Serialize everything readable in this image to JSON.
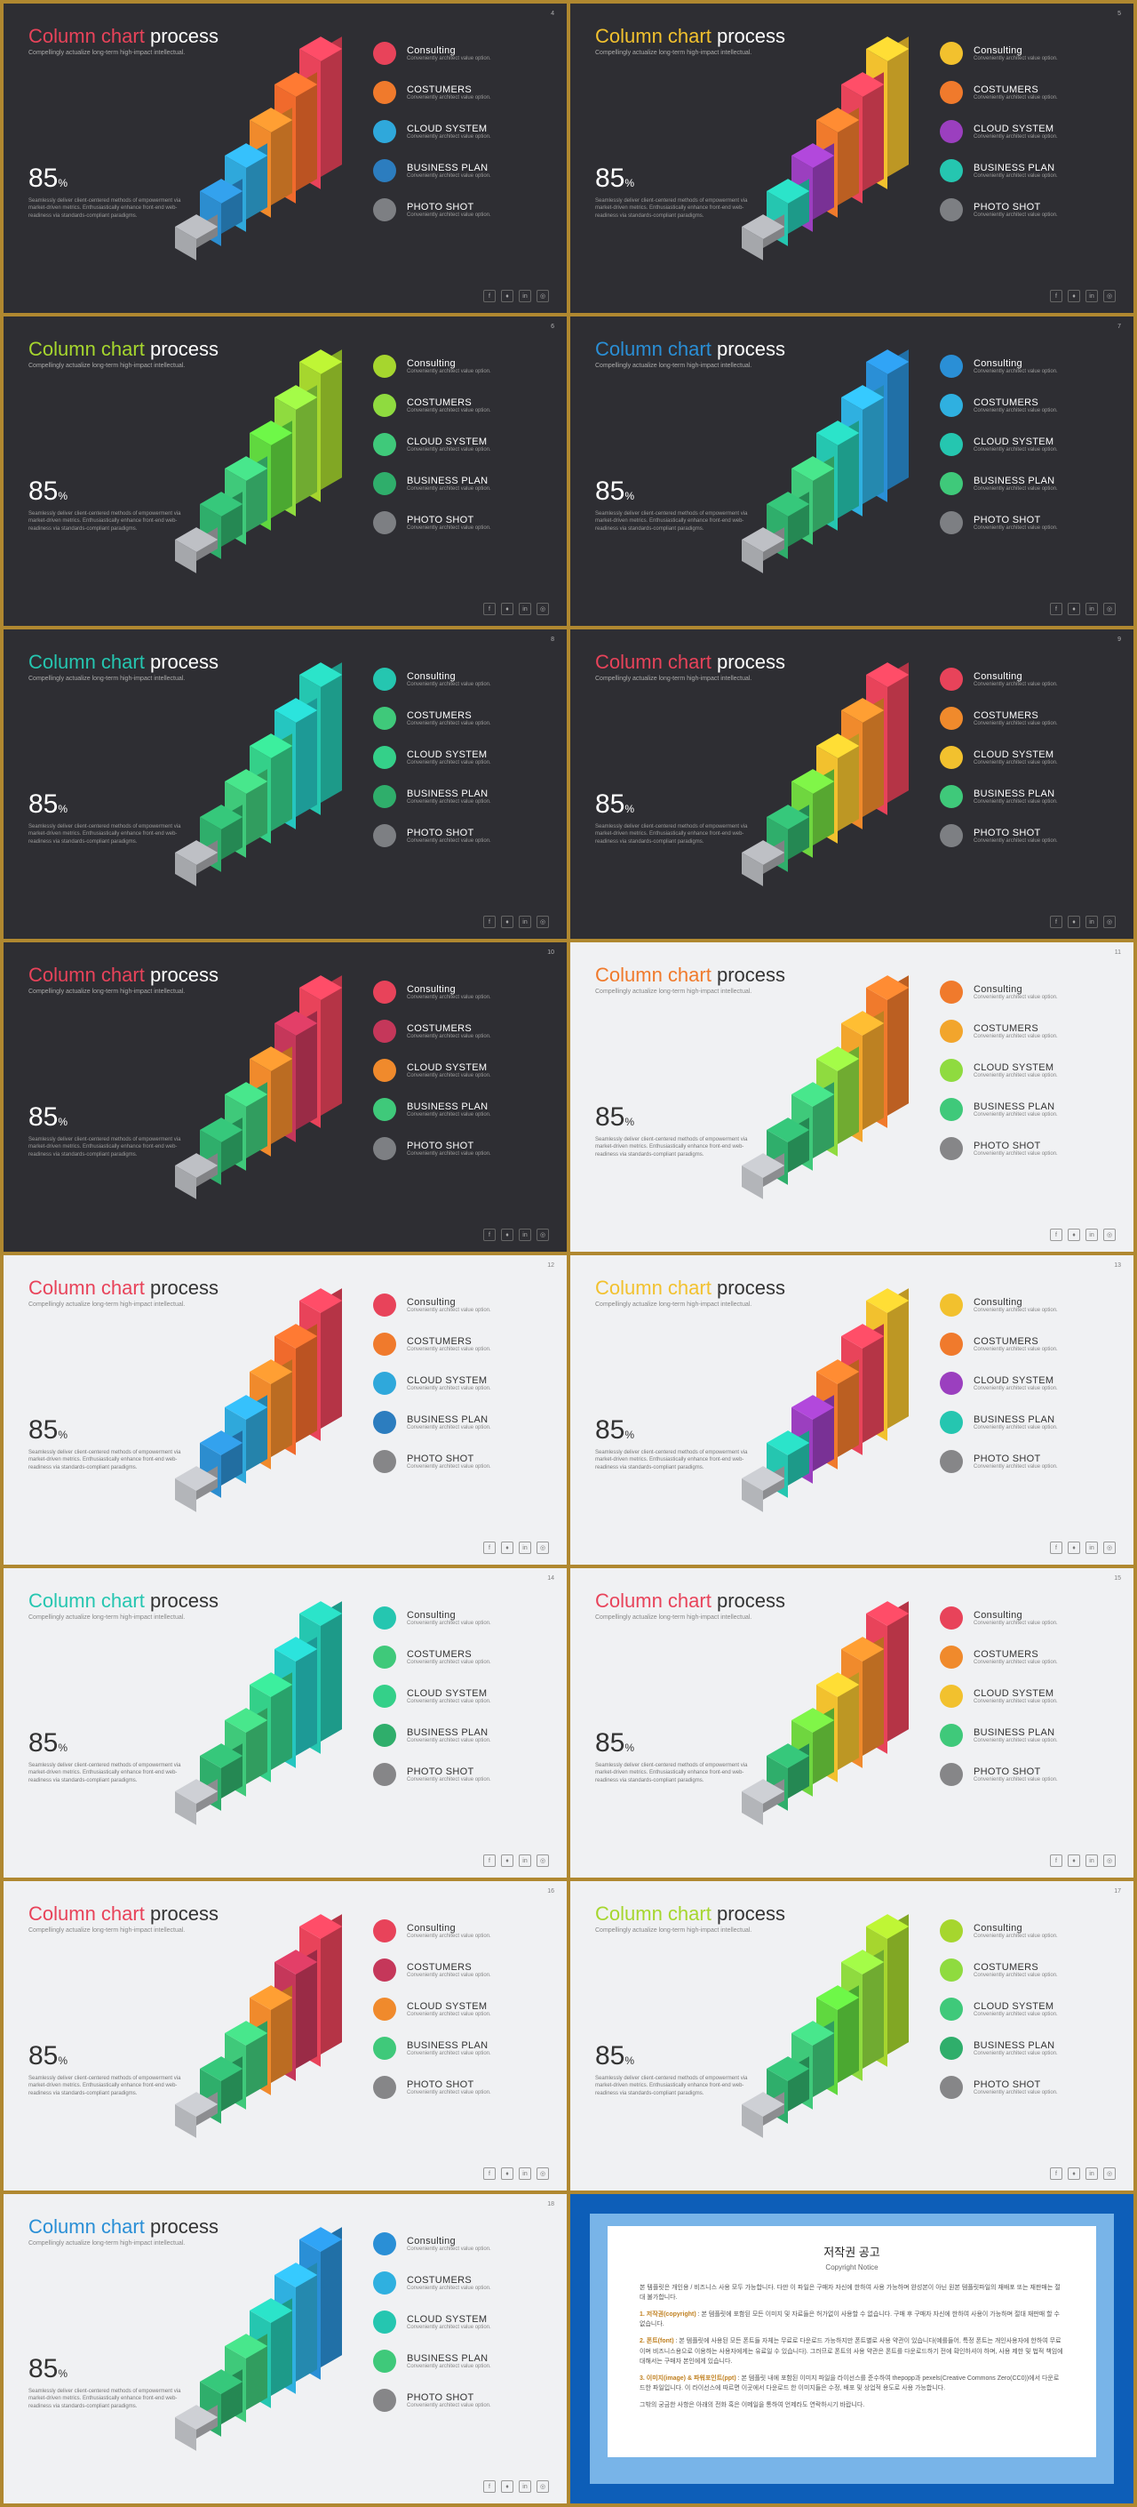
{
  "grid_border_color": "#b08830",
  "bar_heights": [
    24,
    48,
    72,
    96,
    120,
    144
  ],
  "bar_step_x": 28,
  "bar_step_y": 16,
  "bar_face_w": 24,
  "common": {
    "title_accent": "Column chart",
    "title_rest": " process",
    "subtitle": "Compellingly actualize long-term high-impact intellectual.",
    "stat_value": "85",
    "stat_unit": "%",
    "stat_text": "Seamlessly deliver client-centered methods of empowerment via market-driven metrics. Enthusiastically enhance front-end web-readiness via standards-compliant paradigms.",
    "legend_items": [
      {
        "label": "Consulting",
        "sub": "Conveniently architect value option."
      },
      {
        "label": "COSTUMERS",
        "sub": "Conveniently architect value option."
      },
      {
        "label": "CLOUD SYSTEM",
        "sub": "Conveniently architect value option."
      },
      {
        "label": "BUSINESS PLAN",
        "sub": "Conveniently architect value option."
      },
      {
        "label": "PHOTO SHOT",
        "sub": "Conveniently architect value option."
      }
    ],
    "footer_icons": [
      "f",
      "♦",
      "in",
      "◎"
    ]
  },
  "themes": {
    "dark": {
      "bg": "#2e2e33",
      "text": "#ffffff",
      "muted": "#999999",
      "gray_bar": "#a5a7ab",
      "gray_dot": "#7d7f83"
    },
    "light": {
      "bg": "#f0f1f3",
      "text": "#333333",
      "muted": "#888888",
      "gray_bar": "#b3b5b9",
      "gray_dot": "#868688"
    }
  },
  "palettes": {
    "redblue": {
      "accent": "#e8435a",
      "bars": [
        "gray",
        "#2c8dcf",
        "#2fa8db",
        "#f08a2c",
        "#f06a2c",
        "#e8435a"
      ],
      "dots": [
        "#e8435a",
        "#f07a2c",
        "#2fa8db",
        "#2c7dbf",
        "gray"
      ]
    },
    "yellowmix": {
      "accent": "#f2c12e",
      "bars": [
        "gray",
        "#25c6b0",
        "#9b3fbf",
        "#f07a2c",
        "#e8445a",
        "#f2c12e"
      ],
      "dots": [
        "#f2c12e",
        "#f07a2c",
        "#9b3fbf",
        "#25c6b0",
        "gray"
      ]
    },
    "greens": {
      "accent": "#a6d62e",
      "bars": [
        "gray",
        "#2fae6b",
        "#3fc97a",
        "#60d83f",
        "#8fdb3f",
        "#a6d62e"
      ],
      "dots": [
        "#a6d62e",
        "#8fdb3f",
        "#3fc97a",
        "#2fae6b",
        "gray"
      ]
    },
    "blues": {
      "accent": "#2a8fd6",
      "bars": [
        "gray",
        "#2fae6b",
        "#3fc97a",
        "#25c6b0",
        "#2fb0e0",
        "#2a8fd6"
      ],
      "dots": [
        "#2a8fd6",
        "#2fb0e0",
        "#25c6b0",
        "#3fc97a",
        "gray"
      ]
    },
    "teals": {
      "accent": "#25c6b0",
      "bars": [
        "gray",
        "#2fae6b",
        "#3fc97a",
        "#34d089",
        "#25c6c0",
        "#25c6b0"
      ],
      "dots": [
        "#25c6b0",
        "#3fc97a",
        "#34d089",
        "#2fae6b",
        "gray"
      ]
    },
    "rainbow": {
      "accent": "#e8435a",
      "bars": [
        "gray",
        "#2fae6b",
        "#6fd63f",
        "#f2c12e",
        "#f08a2c",
        "#e8435a"
      ],
      "dots": [
        "#e8435a",
        "#f08a2c",
        "#f2c12e",
        "#3fc97a",
        "gray"
      ]
    },
    "pinks": {
      "accent": "#e8435a",
      "bars": [
        "gray",
        "#2fae6b",
        "#3fc97a",
        "#f08a2c",
        "#c5375a",
        "#e8435a"
      ],
      "dots": [
        "#e8435a",
        "#c5375a",
        "#f08a2c",
        "#3fc97a",
        "gray"
      ]
    },
    "oranges": {
      "accent": "#f07a2c",
      "bars": [
        "gray",
        "#2fae6b",
        "#3fc97a",
        "#8fdb3f",
        "#f2a52c",
        "#f07a2c"
      ],
      "dots": [
        "#f07a2c",
        "#f2a52c",
        "#8fdb3f",
        "#3fc97a",
        "gray"
      ]
    }
  },
  "slides": [
    {
      "page": 4,
      "theme": "dark",
      "palette": "redblue"
    },
    {
      "page": 5,
      "theme": "dark",
      "palette": "yellowmix"
    },
    {
      "page": 6,
      "theme": "dark",
      "palette": "greens"
    },
    {
      "page": 7,
      "theme": "dark",
      "palette": "blues"
    },
    {
      "page": 8,
      "theme": "dark",
      "palette": "teals"
    },
    {
      "page": 9,
      "theme": "dark",
      "palette": "rainbow"
    },
    {
      "page": 10,
      "theme": "dark",
      "palette": "pinks"
    },
    {
      "page": 11,
      "theme": "light",
      "palette": "oranges"
    },
    {
      "page": 12,
      "theme": "light",
      "palette": "redblue"
    },
    {
      "page": 13,
      "theme": "light",
      "palette": "yellowmix"
    },
    {
      "page": 14,
      "theme": "light",
      "palette": "teals"
    },
    {
      "page": 15,
      "theme": "light",
      "palette": "rainbow"
    },
    {
      "page": 16,
      "theme": "light",
      "palette": "pinks"
    },
    {
      "page": 17,
      "theme": "light",
      "palette": "greens"
    },
    {
      "page": 18,
      "theme": "light",
      "palette": "blues"
    }
  ],
  "copyright": {
    "title_kr": "저작권 공고",
    "title_en": "Copyright Notice",
    "intro": "본 템플릿은 개인용 / 비즈니스 사용 모두 가능합니다. 다만 이 파일은 구매자 자신에 한하여 사용 가능하며 완성본이 아닌 원본 템플릿파일의 재배포 또는 재판매는 절대 불가합니다.",
    "s1_head": "1. 저작권(copyright)",
    "s1_body": "본 템플릿에 포함된 모든 이미지 및 자료들은 허가없이 사용할 수 없습니다. 구매 후 구매자 자신에 한하여 사용이 가능하며 절대 재판매 할 수 없습니다.",
    "s2_head": "2. 폰트(font)",
    "s2_body": "본 템플릿에 사용된 모든 폰트들 자체는 무료로 다운로드 가능하지만 폰트별로 사용 약관이 있습니다(예를들어, 특정 폰트는 개인사용자에 한하여 무료이며 비즈니스용으로 이용하는 사용자에게는 유료일 수 있습니다). 그러므로 폰트의 사용 약관은 폰트를 다운로드하기 전에 확인하셔야 하며, 사용 제한 및 법적 책임에 대해서는 구매자 본인에게 있습니다.",
    "s3_head": "3. 이미지(image) & 파워포인트(ppt)",
    "s3_body": "본 템플릿 내에 포함된 이미지 파일을 라이선스를 준수하여 thepopp과 pexels(Creative Commons Zero(CC0))에서 다운로드한 파일입니다. 이 라이선스에 따르면 이곳에서 다운로드 한 이미지들은 수정, 배포 및 상업적 용도로 사용 가능합니다.",
    "footer": "그밖의 궁금한 사항은 아래의 전화 혹은 이메일을 통하여 언제라도 연락하시기 바랍니다."
  }
}
